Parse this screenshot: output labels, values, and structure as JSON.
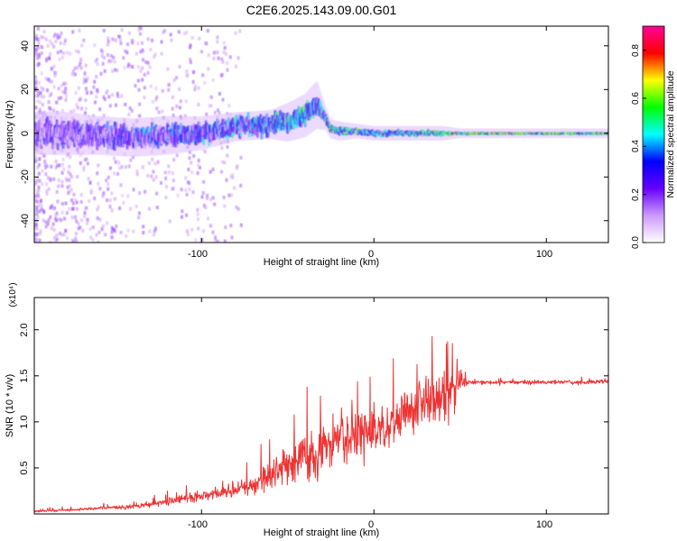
{
  "title": "C2E6.2025.143.09.00.G01",
  "colors": {
    "snr_line": "#ee3333",
    "axis": "#000000",
    "background": "#ffffff"
  },
  "chart_data": [
    {
      "type": "heatmap",
      "xlabel": "Height of straight line (km)",
      "ylabel": "Frequency (Hz)",
      "xlim": [
        -197,
        136
      ],
      "ylim": [
        -50,
        49
      ],
      "x_ticks": [
        -100,
        0,
        100
      ],
      "x_tick_labels": [
        "-100",
        "0",
        "100"
      ],
      "y_ticks": [
        -40,
        -20,
        0,
        20,
        40
      ],
      "y_tick_labels": [
        "-40",
        "-20",
        "0",
        "20",
        "40"
      ],
      "colorbar": {
        "label": "Normalized spectral amplitude",
        "range": [
          0,
          0.9
        ],
        "ticks": [
          0,
          0.2,
          0.4,
          0.6,
          0.8
        ],
        "tick_labels": [
          "0.0",
          "0.2",
          "0.4",
          "0.6",
          "0.8"
        ],
        "colormap": [
          "#ffffff",
          "#cc99ff",
          "#6600ff",
          "#0000ff",
          "#00ffff",
          "#00ff00",
          "#ffff00",
          "#ff0000",
          "#ff0099"
        ]
      },
      "ridge": {
        "x": [
          -197,
          -180,
          -160,
          -140,
          -120,
          -100,
          -80,
          -60,
          -50,
          -40,
          -33,
          -28,
          -25,
          -20,
          -10,
          0,
          20,
          40,
          50,
          80,
          100,
          120,
          136
        ],
        "center": [
          0,
          0,
          -1,
          -2,
          -1,
          0,
          3,
          4,
          5,
          8,
          13,
          7,
          2,
          1,
          1,
          0,
          0,
          0,
          0,
          0,
          0,
          0,
          0
        ],
        "amplitude": [
          0.3,
          0.32,
          0.35,
          0.38,
          0.4,
          0.42,
          0.45,
          0.5,
          0.55,
          0.55,
          0.5,
          0.6,
          0.65,
          0.6,
          0.6,
          0.55,
          0.6,
          0.65,
          0.75,
          0.8,
          0.75,
          0.72,
          0.7
        ],
        "halfwidth": [
          9,
          9,
          8,
          8,
          8,
          7,
          6,
          6,
          8,
          9,
          10,
          5,
          4,
          4,
          3,
          3,
          3,
          3,
          2,
          2,
          2,
          2,
          2
        ],
        "scatter": [
          6,
          6,
          6,
          5,
          5,
          5,
          5,
          5,
          4,
          4,
          3,
          2,
          2,
          2,
          1.5,
          1.5,
          1.5,
          1.2,
          0.5,
          0.3,
          0.3,
          0.3,
          0.3
        ]
      }
    },
    {
      "type": "line",
      "xlabel": "Height of straight line (km)",
      "ylabel": "SNR (10 * v/v)",
      "y_multiplier": "(x10⁴)",
      "xlim": [
        -197,
        136
      ],
      "ylim": [
        0,
        2.35
      ],
      "x_ticks": [
        -100,
        0,
        100
      ],
      "x_tick_labels": [
        "-100",
        "0",
        "100"
      ],
      "y_ticks": [
        0.5,
        1.0,
        1.5,
        2.0
      ],
      "y_tick_labels": [
        "0.5",
        "1.0",
        "1.5",
        "2.0"
      ],
      "series": [
        {
          "x": [
            -197,
            -180,
            -160,
            -140,
            -130,
            -120,
            -110,
            -100,
            -90,
            -80,
            -70,
            -60,
            -50,
            -40,
            -30,
            -20,
            -10,
            0,
            10,
            20,
            30,
            40,
            45,
            50,
            55,
            60,
            80,
            100,
            120,
            136
          ],
          "y": [
            0.03,
            0.04,
            0.06,
            0.08,
            0.1,
            0.13,
            0.17,
            0.2,
            0.22,
            0.26,
            0.32,
            0.42,
            0.55,
            0.62,
            0.7,
            0.78,
            0.85,
            0.9,
            1.0,
            1.15,
            1.22,
            1.28,
            1.35,
            1.4,
            1.43,
            1.43,
            1.43,
            1.43,
            1.43,
            1.44
          ],
          "noise": [
            0.02,
            0.02,
            0.03,
            0.04,
            0.05,
            0.07,
            0.08,
            0.09,
            0.1,
            0.14,
            0.2,
            0.28,
            0.35,
            0.45,
            0.5,
            0.5,
            0.5,
            0.5,
            0.5,
            0.45,
            0.45,
            0.5,
            0.5,
            0.2,
            0.05,
            0.04,
            0.04,
            0.04,
            0.04,
            0.04
          ]
        }
      ]
    }
  ]
}
